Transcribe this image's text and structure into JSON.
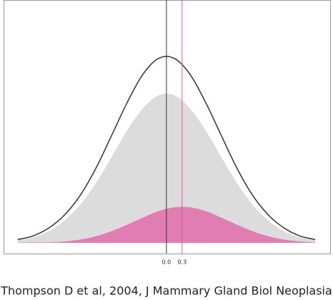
{
  "chart_data": {
    "type": "area",
    "x": [
      -2.85,
      -2.55,
      -2.25,
      -1.95,
      -1.65,
      -1.35,
      -1.05,
      -0.75,
      -0.45,
      -0.15,
      0.15,
      0.45,
      0.75,
      1.05,
      1.35,
      1.65,
      1.95,
      2.25,
      2.55,
      2.85
    ],
    "series": [
      {
        "kind": "area",
        "color": "#dcdcdc",
        "values": [
          0.006,
          0.012,
          0.025,
          0.048,
          0.082,
          0.128,
          0.184,
          0.241,
          0.288,
          0.316,
          0.316,
          0.288,
          0.241,
          0.184,
          0.128,
          0.082,
          0.048,
          0.025,
          0.012,
          0.006
        ]
      },
      {
        "kind": "area",
        "color": "#e27db3",
        "values": [
          0,
          0.001,
          0.001,
          0.003,
          0.007,
          0.014,
          0.025,
          0.039,
          0.054,
          0.068,
          0.076,
          0.076,
          0.068,
          0.054,
          0.039,
          0.025,
          0.014,
          0.007,
          0.003,
          0.001
        ]
      },
      {
        "kind": "line",
        "color": "#333333",
        "values": [
          0.007,
          0.015,
          0.032,
          0.06,
          0.102,
          0.16,
          0.23,
          0.301,
          0.361,
          0.395,
          0.395,
          0.361,
          0.301,
          0.23,
          0.16,
          0.102,
          0.06,
          0.032,
          0.015,
          0.007
        ]
      }
    ],
    "xlim": [
      -3.12,
      3.15
    ],
    "ylim": [
      -0.023,
      0.52
    ],
    "xticks": [
      {
        "value": 0,
        "label": "0.0"
      },
      {
        "value": 0.3,
        "label": "0.3"
      }
    ],
    "xtick_line_colors": [
      "#333333",
      "#e8559f"
    ],
    "caption": "(Thompson D et al, 2004, J Mammary Gland Biol Neoplasia)"
  }
}
